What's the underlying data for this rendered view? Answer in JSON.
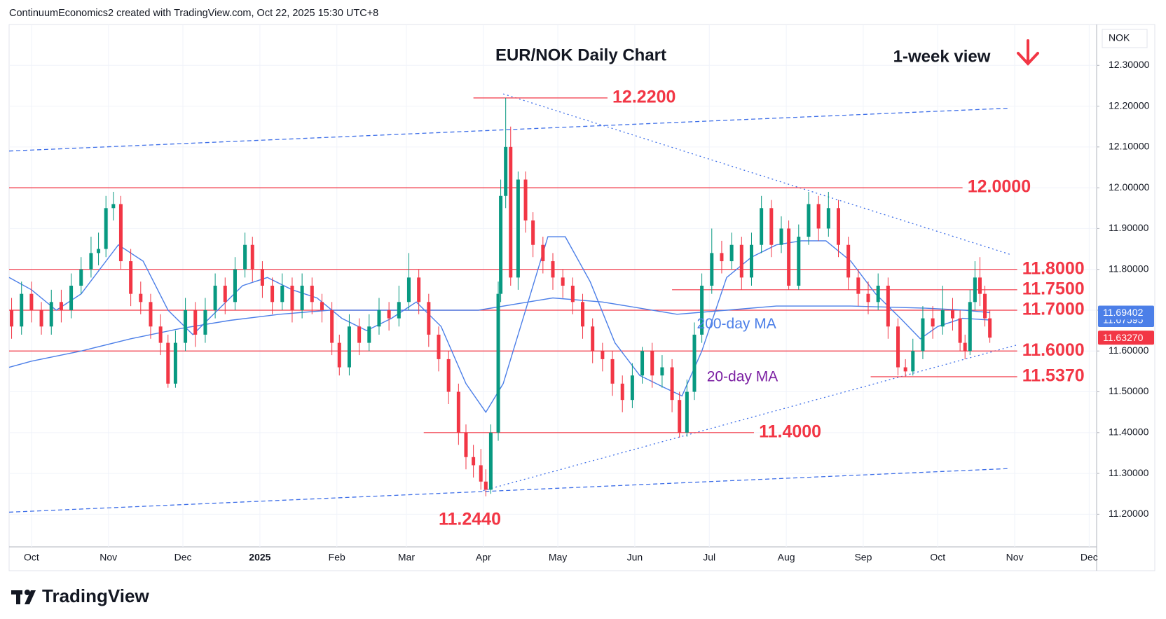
{
  "chart_data": {
    "type": "candlestick",
    "source": "ContinuumEconomics2 created with TradingView.com, Oct 22, 2025 15:30 UTC+8",
    "title": "EUR/NOK Daily Chart",
    "subtitle": "1-week view",
    "unit": "NOK",
    "brand": "TradingView",
    "up_color": "#089981",
    "down_color": "#f23645",
    "level_color": "#f23645",
    "grid": true,
    "xlim": [
      -9,
      429
    ],
    "ylim": [
      11.12,
      12.4
    ],
    "xticks": [
      {
        "value": 0,
        "label": "Oct"
      },
      {
        "value": 31,
        "label": "Nov"
      },
      {
        "value": 61,
        "label": "Dec"
      },
      {
        "value": 92,
        "label": "2025"
      },
      {
        "value": 123,
        "label": "Feb"
      },
      {
        "value": 151,
        "label": "Mar"
      },
      {
        "value": 182,
        "label": "Apr"
      },
      {
        "value": 212,
        "label": "May"
      },
      {
        "value": 243,
        "label": "Jun"
      },
      {
        "value": 273,
        "label": "Jul"
      },
      {
        "value": 304,
        "label": "Aug"
      },
      {
        "value": 335,
        "label": "Sep"
      },
      {
        "value": 365,
        "label": "Oct"
      },
      {
        "value": 396,
        "label": "Nov"
      },
      {
        "value": 426,
        "label": "Dec"
      }
    ],
    "yticks": [
      {
        "value": 11.2,
        "label": "11.20000"
      },
      {
        "value": 11.3,
        "label": "11.30000"
      },
      {
        "value": 11.4,
        "label": "11.40000"
      },
      {
        "value": 11.5,
        "label": "11.50000"
      },
      {
        "value": 11.6,
        "label": "11.60000"
      },
      {
        "value": 11.7,
        "label": "11.70000"
      },
      {
        "value": 11.8,
        "label": "11.80000"
      },
      {
        "value": 11.9,
        "label": "11.90000"
      },
      {
        "value": 12.0,
        "label": "12.00000"
      },
      {
        "value": 12.1,
        "label": "12.10000"
      },
      {
        "value": 12.2,
        "label": "12.20000"
      },
      {
        "value": 12.3,
        "label": "12.30000"
      }
    ],
    "x": [
      -8,
      -4,
      0,
      4,
      8,
      12,
      16,
      20,
      24,
      27,
      30,
      33,
      36,
      40,
      44,
      48,
      52,
      55,
      58,
      62,
      66,
      70,
      74,
      78,
      82,
      86,
      89,
      93,
      97,
      101,
      105,
      109,
      113,
      117,
      121,
      124,
      128,
      132,
      136,
      140,
      144,
      148,
      152,
      156,
      160,
      164,
      168,
      172,
      175,
      178,
      181,
      183,
      185,
      188,
      189,
      191,
      193,
      196,
      199,
      202,
      206,
      210,
      214,
      218,
      222,
      226,
      230,
      234,
      238,
      242,
      246,
      250,
      254,
      258,
      261,
      264,
      267,
      270,
      274,
      278,
      282,
      286,
      290,
      294,
      298,
      302,
      305,
      309,
      313,
      317,
      321,
      325,
      329,
      333,
      337,
      341,
      345,
      349,
      352,
      355,
      359,
      363,
      367,
      371,
      374,
      376,
      378,
      380,
      382,
      384,
      386
    ],
    "open": [
      11.7,
      11.66,
      11.74,
      11.7,
      11.66,
      11.72,
      11.7,
      11.76,
      11.8,
      11.84,
      11.85,
      11.95,
      11.96,
      11.82,
      11.74,
      11.72,
      11.66,
      11.62,
      11.52,
      11.62,
      11.7,
      11.64,
      11.7,
      11.76,
      11.72,
      11.8,
      11.86,
      11.8,
      11.76,
      11.72,
      11.76,
      11.7,
      11.76,
      11.72,
      11.7,
      11.62,
      11.56,
      11.66,
      11.62,
      11.66,
      11.7,
      11.68,
      11.72,
      11.78,
      11.72,
      11.64,
      11.58,
      11.5,
      11.4,
      11.34,
      11.32,
      11.28,
      11.26,
      11.4,
      11.74,
      11.98,
      12.1,
      11.78,
      12.02,
      11.92,
      11.86,
      11.82,
      11.78,
      11.76,
      11.72,
      11.66,
      11.6,
      11.58,
      11.52,
      11.48,
      11.54,
      11.6,
      11.54,
      11.56,
      11.48,
      11.4,
      11.5,
      11.64,
      11.76,
      11.84,
      11.82,
      11.86,
      11.78,
      11.86,
      11.95,
      11.86,
      11.9,
      11.76,
      11.88,
      11.96,
      11.9,
      11.95,
      11.86,
      11.78,
      11.74,
      11.72,
      11.76,
      11.66,
      11.56,
      11.55,
      11.6,
      11.68,
      11.66,
      11.7,
      11.68,
      11.62,
      11.6,
      11.72,
      11.78,
      11.74,
      11.68
    ],
    "high": [
      11.73,
      11.77,
      11.77,
      11.72,
      11.75,
      11.75,
      11.79,
      11.83,
      11.88,
      11.89,
      11.98,
      11.99,
      11.98,
      11.85,
      11.77,
      11.74,
      11.69,
      11.64,
      11.65,
      11.73,
      11.72,
      11.73,
      11.79,
      11.78,
      11.83,
      11.89,
      11.88,
      11.82,
      11.78,
      11.79,
      11.78,
      11.79,
      11.78,
      11.74,
      11.72,
      11.64,
      11.69,
      11.68,
      11.69,
      11.73,
      11.72,
      11.76,
      11.84,
      11.8,
      11.74,
      11.66,
      11.6,
      11.52,
      11.42,
      11.37,
      11.36,
      11.31,
      11.42,
      11.77,
      12.02,
      12.22,
      12.15,
      12.04,
      12.04,
      11.94,
      11.88,
      11.84,
      11.8,
      11.78,
      11.74,
      11.68,
      11.62,
      11.6,
      11.54,
      11.57,
      11.61,
      11.62,
      11.59,
      11.58,
      11.5,
      11.53,
      11.67,
      11.79,
      11.9,
      11.87,
      11.89,
      11.88,
      11.89,
      11.98,
      11.97,
      11.93,
      11.92,
      11.91,
      11.99,
      11.98,
      11.99,
      11.97,
      11.88,
      11.8,
      11.77,
      11.79,
      11.78,
      11.68,
      11.58,
      11.63,
      11.71,
      11.71,
      11.76,
      11.73,
      11.7,
      11.64,
      11.75,
      11.82,
      11.83,
      11.76,
      11.7
    ],
    "low": [
      11.63,
      11.64,
      11.67,
      11.64,
      11.64,
      11.67,
      11.68,
      11.74,
      11.78,
      11.81,
      11.83,
      11.92,
      11.8,
      11.71,
      11.69,
      11.63,
      11.59,
      11.51,
      11.51,
      11.6,
      11.61,
      11.62,
      11.68,
      11.69,
      11.7,
      11.78,
      11.77,
      11.73,
      11.69,
      11.7,
      11.67,
      11.68,
      11.69,
      11.67,
      11.59,
      11.54,
      11.54,
      11.59,
      11.6,
      11.64,
      11.65,
      11.66,
      11.7,
      11.69,
      11.61,
      11.55,
      11.47,
      11.37,
      11.31,
      11.29,
      11.26,
      11.244,
      11.25,
      11.38,
      11.72,
      11.95,
      11.76,
      11.75,
      11.89,
      11.83,
      11.79,
      11.75,
      11.73,
      11.69,
      11.63,
      11.57,
      11.55,
      11.49,
      11.45,
      11.46,
      11.52,
      11.51,
      11.51,
      11.45,
      11.388,
      11.39,
      11.48,
      11.62,
      11.74,
      11.79,
      11.8,
      11.75,
      11.76,
      11.84,
      11.83,
      11.84,
      11.75,
      11.75,
      11.86,
      11.87,
      11.88,
      11.83,
      11.75,
      11.71,
      11.69,
      11.7,
      11.63,
      11.54,
      11.537,
      11.54,
      11.58,
      11.63,
      11.64,
      11.65,
      11.6,
      11.58,
      11.59,
      11.7,
      11.71,
      11.66,
      11.62
    ],
    "close": [
      11.66,
      11.74,
      11.7,
      11.66,
      11.72,
      11.7,
      11.76,
      11.8,
      11.84,
      11.85,
      11.95,
      11.96,
      11.82,
      11.74,
      11.72,
      11.66,
      11.62,
      11.52,
      11.62,
      11.7,
      11.64,
      11.7,
      11.76,
      11.72,
      11.8,
      11.86,
      11.8,
      11.76,
      11.72,
      11.76,
      11.7,
      11.76,
      11.72,
      11.7,
      11.62,
      11.56,
      11.66,
      11.62,
      11.66,
      11.7,
      11.68,
      11.72,
      11.78,
      11.72,
      11.64,
      11.58,
      11.5,
      11.4,
      11.34,
      11.32,
      11.28,
      11.26,
      11.4,
      11.74,
      11.98,
      12.1,
      11.78,
      12.02,
      11.92,
      11.86,
      11.82,
      11.78,
      11.76,
      11.72,
      11.66,
      11.6,
      11.58,
      11.52,
      11.48,
      11.54,
      11.6,
      11.54,
      11.56,
      11.48,
      11.4,
      11.5,
      11.64,
      11.76,
      11.84,
      11.82,
      11.86,
      11.78,
      11.86,
      11.95,
      11.86,
      11.9,
      11.76,
      11.88,
      11.96,
      11.9,
      11.95,
      11.86,
      11.78,
      11.74,
      11.72,
      11.76,
      11.66,
      11.56,
      11.55,
      11.6,
      11.68,
      11.66,
      11.7,
      11.68,
      11.62,
      11.6,
      11.72,
      11.78,
      11.74,
      11.68,
      11.6327
    ],
    "series": [
      {
        "name": "200-day MA",
        "color": "#4c7fe8",
        "label_color": "#4c7fe8",
        "x": [
          -9,
          0,
          20,
          40,
          60,
          80,
          100,
          120,
          150,
          180,
          200,
          210,
          230,
          260,
          280,
          300,
          330,
          360,
          376,
          386
        ],
        "values": [
          11.56,
          11.575,
          11.6,
          11.63,
          11.655,
          11.675,
          11.69,
          11.7,
          11.7,
          11.7,
          11.72,
          11.73,
          11.72,
          11.69,
          11.7,
          11.71,
          11.71,
          11.705,
          11.7,
          11.69402
        ]
      },
      {
        "name": "20-day MA",
        "color": "#4c7fe8",
        "label_color": "#7b1fa2",
        "x": [
          -9,
          0,
          10,
          20,
          30,
          35,
          45,
          55,
          65,
          75,
          85,
          95,
          105,
          115,
          125,
          135,
          145,
          155,
          165,
          175,
          183,
          190,
          200,
          208,
          215,
          225,
          235,
          245,
          255,
          262,
          270,
          280,
          290,
          300,
          310,
          320,
          330,
          340,
          350,
          358,
          365,
          375,
          386
        ],
        "values": [
          11.78,
          11.75,
          11.7,
          11.74,
          11.82,
          11.86,
          11.82,
          11.7,
          11.64,
          11.7,
          11.76,
          11.78,
          11.75,
          11.73,
          11.68,
          11.65,
          11.68,
          11.72,
          11.66,
          11.52,
          11.45,
          11.52,
          11.72,
          11.88,
          11.88,
          11.77,
          11.62,
          11.54,
          11.51,
          11.49,
          11.6,
          11.78,
          11.83,
          11.86,
          11.87,
          11.87,
          11.82,
          11.74,
          11.68,
          11.63,
          11.66,
          11.68,
          11.67595
        ]
      }
    ],
    "levels": [
      {
        "value": 12.22,
        "label": "12.2200"
      },
      {
        "value": 12.0,
        "label": "12.0000"
      },
      {
        "value": 11.8,
        "label": "11.8000"
      },
      {
        "value": 11.75,
        "label": "11.7500"
      },
      {
        "value": 11.7,
        "label": "11.7000"
      },
      {
        "value": 11.6,
        "label": "11.6000"
      },
      {
        "value": 11.537,
        "label": "11.5370"
      },
      {
        "value": 11.4,
        "label": "11.4000"
      },
      {
        "value": 11.244,
        "label": "11.2440"
      }
    ],
    "trendlines": [
      {
        "style": "dashed",
        "x": [
          -9,
          394
        ],
        "y": [
          12.09,
          12.195
        ]
      },
      {
        "style": "dashed",
        "x": [
          -9,
          394
        ],
        "y": [
          11.205,
          11.312
        ]
      },
      {
        "style": "dotted",
        "x": [
          190,
          395
        ],
        "y": [
          12.23,
          11.835
        ]
      },
      {
        "style": "dotted",
        "x": [
          182,
          397
        ],
        "y": [
          11.258,
          11.615
        ]
      }
    ],
    "price_labels": [
      {
        "value": 11.67595,
        "label": "11.67595",
        "color": "#4c7fe8"
      },
      {
        "value": 11.69402,
        "label": "11.69402",
        "color": "#4c7fe8"
      },
      {
        "value": 11.6327,
        "label": "11.63270",
        "color": "#f23645"
      }
    ]
  }
}
